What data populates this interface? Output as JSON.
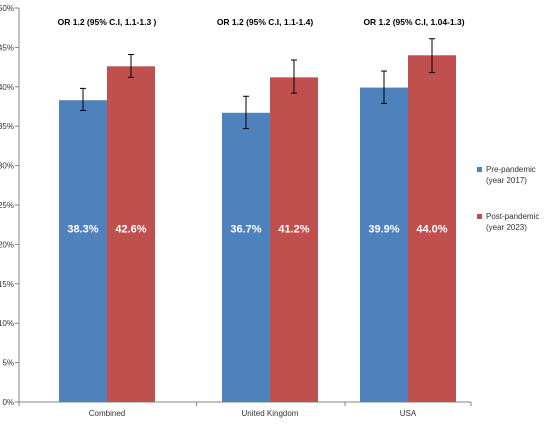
{
  "chart_data": {
    "type": "bar",
    "categories": [
      "Combined",
      "United Kingdom",
      "USA"
    ],
    "series": [
      {
        "name": "Pre-pandemic (year 2017)",
        "legend_lines": [
          "Pre-pandemic",
          "(year 2017)"
        ],
        "color": "#4f81bd",
        "values": [
          38.3,
          36.7,
          39.9
        ],
        "labels": [
          "38.3%",
          "36.7%",
          "39.9%"
        ],
        "error_low": [
          37.0,
          34.7,
          37.9
        ],
        "error_high": [
          39.8,
          38.8,
          42.0
        ]
      },
      {
        "name": "Post-pandemic (year 2023)",
        "legend_lines": [
          "Post-pandemic",
          "(year 2023)"
        ],
        "color": "#c0504d",
        "values": [
          42.6,
          41.2,
          44.0
        ],
        "labels": [
          "42.6%",
          "41.2%",
          "44.0%"
        ],
        "error_low": [
          41.2,
          39.2,
          41.8
        ],
        "error_high": [
          44.1,
          43.4,
          46.1
        ]
      }
    ],
    "annotations": [
      "OR 1.2 (95%  C.I, 1.1-1.3 )",
      "OR 1.2 (95% C.I, 1.1-1.4)",
      "OR 1.2 (95% C.I, 1.04-1.3)"
    ],
    "ylim": [
      0,
      50
    ],
    "yticks": [
      0,
      5,
      10,
      15,
      20,
      25,
      30,
      35,
      40,
      45,
      50
    ],
    "ytick_labels": [
      "0%",
      "5%",
      "10%",
      "15%",
      "20%",
      "25%",
      "30%",
      "35%",
      "40%",
      "45%",
      "50%"
    ],
    "grid": false,
    "legend_position": "right"
  }
}
